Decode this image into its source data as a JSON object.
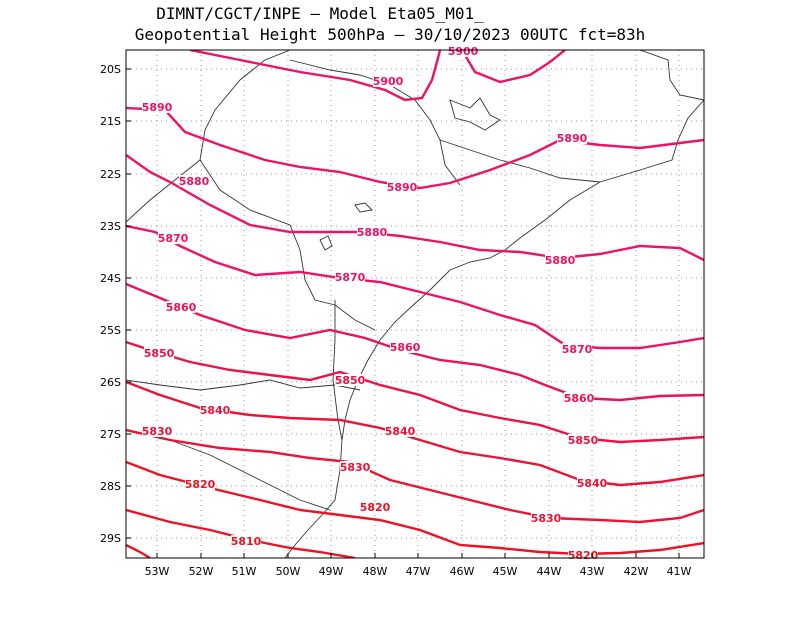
{
  "header": {
    "line1": "DIMNT/CGCT/INPE –  Model Eta05_M01_",
    "line2": "Geopotential Height 500hPa –  30/10/2023 00UTC fct=83h"
  },
  "map": {
    "lat_labels": [
      "20S",
      "21S",
      "22S",
      "23S",
      "24S",
      "25S",
      "26S",
      "27S",
      "28S",
      "29S"
    ],
    "lon_labels": [
      "53W",
      "52W",
      "51W",
      "50W",
      "49W",
      "48W",
      "47W",
      "46W",
      "45W",
      "44W",
      "43W",
      "42W",
      "41W"
    ],
    "contour_labels": [
      {
        "text": "5900",
        "color": "#ee1166"
      },
      {
        "text": "5900",
        "color": "#ee1166"
      },
      {
        "text": "5890",
        "color": "#ee1166"
      },
      {
        "text": "5890",
        "color": "#ee1166"
      },
      {
        "text": "5890",
        "color": "#ee1166"
      },
      {
        "text": "5880",
        "color": "#ee1166"
      },
      {
        "text": "5880",
        "color": "#ee1166"
      },
      {
        "text": "5880",
        "color": "#ee1166"
      },
      {
        "text": "5870",
        "color": "#ee1166"
      },
      {
        "text": "5870",
        "color": "#ee1166"
      },
      {
        "text": "5870",
        "color": "#ee1166"
      },
      {
        "text": "5860",
        "color": "#ee1155"
      },
      {
        "text": "5860",
        "color": "#ee1155"
      },
      {
        "text": "5860",
        "color": "#ee1155"
      },
      {
        "text": "5850",
        "color": "#ee1144"
      },
      {
        "text": "5850",
        "color": "#ee1144"
      },
      {
        "text": "5850",
        "color": "#ee1144"
      },
      {
        "text": "5840",
        "color": "#ee1133"
      },
      {
        "text": "5840",
        "color": "#ee1133"
      },
      {
        "text": "5840",
        "color": "#ee1133"
      },
      {
        "text": "5830",
        "color": "#ee1133"
      },
      {
        "text": "5830",
        "color": "#ee1133"
      },
      {
        "text": "5830",
        "color": "#ee1133"
      },
      {
        "text": "5820",
        "color": "#ee1122"
      },
      {
        "text": "5820",
        "color": "#ee1122"
      },
      {
        "text": "5820",
        "color": "#ee1122"
      },
      {
        "text": "5810",
        "color": "#ee1122"
      }
    ]
  }
}
